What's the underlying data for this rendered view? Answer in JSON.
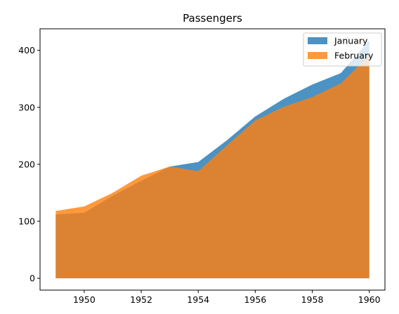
{
  "chart_data": {
    "type": "area",
    "title": "Passengers",
    "xlabel": "",
    "ylabel": "",
    "x": [
      1949,
      1950,
      1951,
      1952,
      1953,
      1954,
      1955,
      1956,
      1957,
      1958,
      1959,
      1960
    ],
    "xticks": [
      "1950",
      "1952",
      "1954",
      "1956",
      "1958",
      "1960"
    ],
    "yticks": [
      "0",
      "100",
      "200",
      "300",
      "400"
    ],
    "xlim": [
      1948.45,
      1960.55
    ],
    "ylim": [
      -20.8,
      437.8
    ],
    "grid": false,
    "legend_position": "top-right",
    "series": [
      {
        "name": "January",
        "color": "#1f77b4",
        "alpha": 0.8,
        "values": [
          112,
          115,
          145,
          171,
          196,
          204,
          242,
          284,
          315,
          340,
          360,
          417
        ]
      },
      {
        "name": "February",
        "color": "#ff7f0e",
        "alpha": 0.8,
        "values": [
          118,
          126,
          150,
          180,
          196,
          188,
          233,
          277,
          301,
          318,
          342,
          391
        ]
      }
    ]
  }
}
